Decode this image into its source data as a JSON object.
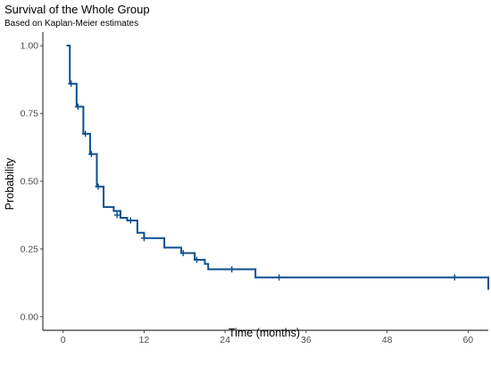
{
  "chart_data": {
    "type": "line",
    "title": "Survival of the Whole Group",
    "subtitle": "Based on Kaplan-Meier estimates",
    "xlabel": "Time (months)",
    "ylabel": "Probability",
    "xlim": [
      -3,
      63
    ],
    "ylim": [
      -0.05,
      1.05
    ],
    "x_ticks": [
      0,
      12,
      24,
      36,
      48,
      60
    ],
    "x_tick_labels": [
      "0",
      "12",
      "24",
      "36",
      "48",
      "60"
    ],
    "y_ticks": [
      0,
      0.25,
      0.5,
      0.75,
      1
    ],
    "y_tick_labels": [
      "0.00",
      "0.25",
      "0.50",
      "0.75",
      "1.00"
    ],
    "grid": false,
    "line_color": "#0b4f8f",
    "series": [
      {
        "step_points": [
          [
            0.5,
            1.0
          ],
          [
            1.0,
            0.86
          ],
          [
            2.0,
            0.775
          ],
          [
            3.0,
            0.675
          ],
          [
            4.0,
            0.6
          ],
          [
            5.0,
            0.48
          ],
          [
            6.0,
            0.405
          ],
          [
            7.5,
            0.39
          ],
          [
            8.5,
            0.365
          ],
          [
            9.5,
            0.355
          ],
          [
            11.0,
            0.31
          ],
          [
            12.0,
            0.29
          ],
          [
            15.0,
            0.255
          ],
          [
            17.5,
            0.235
          ],
          [
            19.5,
            0.21
          ],
          [
            21.0,
            0.195
          ],
          [
            21.5,
            0.175
          ],
          [
            28.5,
            0.145
          ],
          [
            63.0,
            0.1
          ]
        ],
        "censor_marks": [
          [
            1.2,
            0.86
          ],
          [
            2.2,
            0.775
          ],
          [
            3.3,
            0.675
          ],
          [
            4.2,
            0.6
          ],
          [
            5.2,
            0.48
          ],
          [
            8.0,
            0.375
          ],
          [
            10.0,
            0.355
          ],
          [
            12.0,
            0.29
          ],
          [
            17.8,
            0.235
          ],
          [
            19.8,
            0.21
          ],
          [
            25.0,
            0.175
          ],
          [
            32.0,
            0.145
          ],
          [
            58.0,
            0.145
          ]
        ]
      }
    ]
  }
}
